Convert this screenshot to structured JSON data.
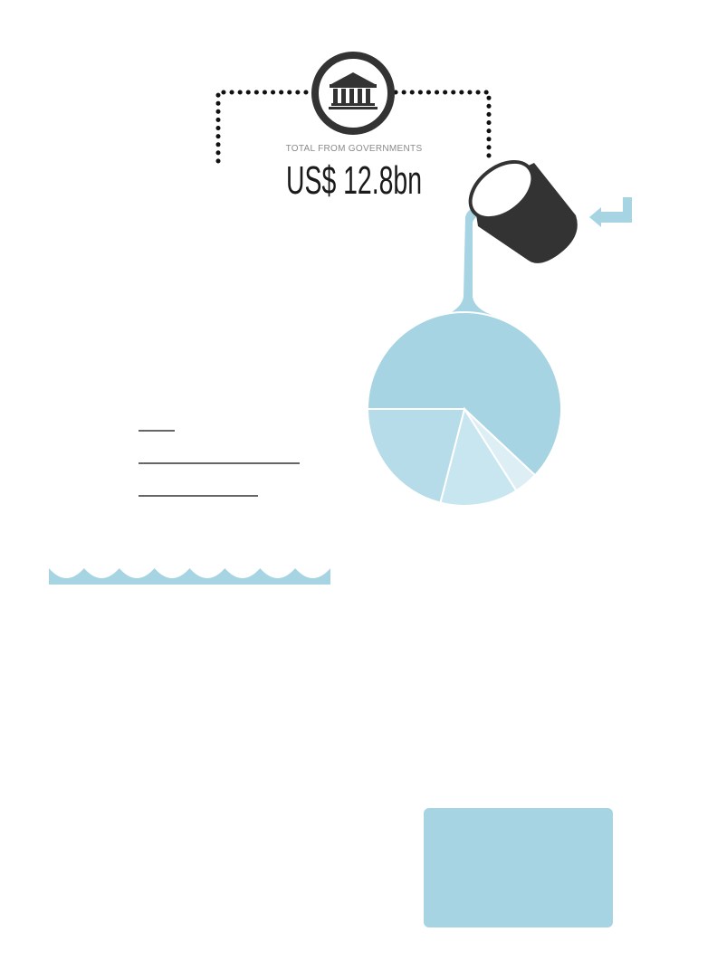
{
  "header": {
    "caption": "TOTAL FROM GOVERNMENTS",
    "total": "US$ 12.8bn",
    "icon": "bank-building-icon"
  },
  "colors": {
    "accent": "#a6d4e2",
    "dark": "#333333",
    "slice_light": "#c8e6ef",
    "slice_lighter": "#ddeff5",
    "slice_mid": "#b5dce8"
  },
  "chart_data": {
    "type": "pie",
    "values": [
      62,
      4,
      13,
      21
    ],
    "start_angle_deg": 180,
    "direction": "counterclockwise"
  }
}
